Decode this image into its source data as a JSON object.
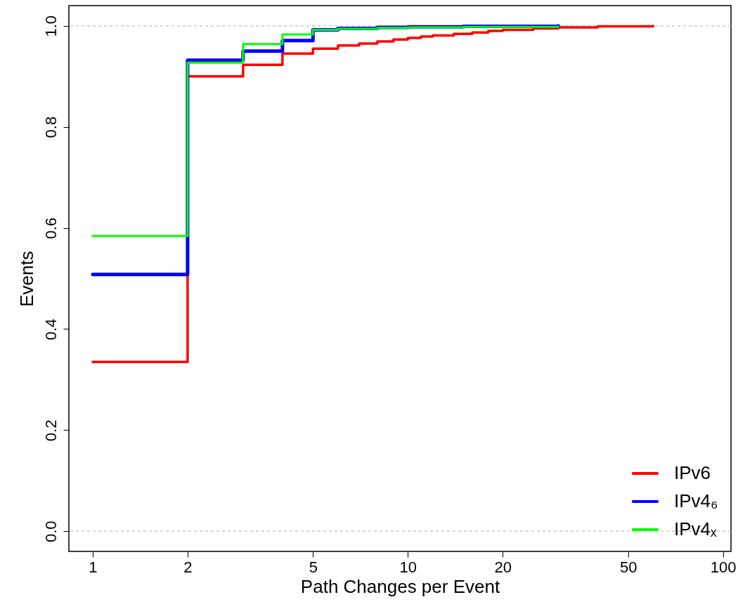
{
  "chart_data": {
    "type": "step",
    "xlabel": "Path Changes per Event",
    "ylabel": "Events",
    "log": "x",
    "xlim": [
      0.84,
      106
    ],
    "xticks": [
      1,
      2,
      5,
      10,
      20,
      50,
      100
    ],
    "ylim": [
      -0.04,
      1.04
    ],
    "yticks": [
      {
        "value": 0,
        "label": "0.0"
      },
      0.2,
      0.4,
      0.6,
      0.8,
      {
        "value": 1,
        "label": "1.0"
      }
    ],
    "series": [
      {
        "name": "IPv6",
        "color": "#ff0000",
        "x": [
          1,
          2,
          3,
          4,
          5,
          6,
          7,
          8,
          9,
          10,
          11,
          12,
          14,
          16,
          18,
          20,
          25,
          30,
          40,
          60
        ],
        "values": [
          0.335,
          0.9,
          0.923,
          0.945,
          0.955,
          0.961,
          0.965,
          0.969,
          0.973,
          0.976,
          0.979,
          0.981,
          0.984,
          0.987,
          0.99,
          0.992,
          0.995,
          0.997,
          0.999,
          1.0
        ]
      },
      {
        "name": "IPv4₆",
        "color": "#0000ff",
        "x": [
          1,
          2,
          3,
          4,
          5,
          6,
          8,
          10,
          15,
          30
        ],
        "values": [
          0.508,
          0.932,
          0.95,
          0.971,
          0.992,
          0.995,
          0.997,
          0.998,
          0.999,
          1.0
        ]
      },
      {
        "name": "IPv4ₓ",
        "color": "#00ff00",
        "x": [
          1,
          2,
          3,
          4,
          5,
          6,
          8,
          10,
          15,
          30
        ],
        "values": [
          0.584,
          0.927,
          0.964,
          0.983,
          0.992,
          0.994,
          0.996,
          0.997,
          0.998,
          0.999
        ]
      }
    ],
    "ref_lines": [
      {
        "axis": "y",
        "value": 0,
        "color": "#bebebe",
        "line_style": "dashed"
      },
      {
        "axis": "y",
        "value": 1,
        "color": "#bebebe",
        "line_style": "dashed"
      }
    ],
    "legend": "bottom right",
    "grid": false
  }
}
